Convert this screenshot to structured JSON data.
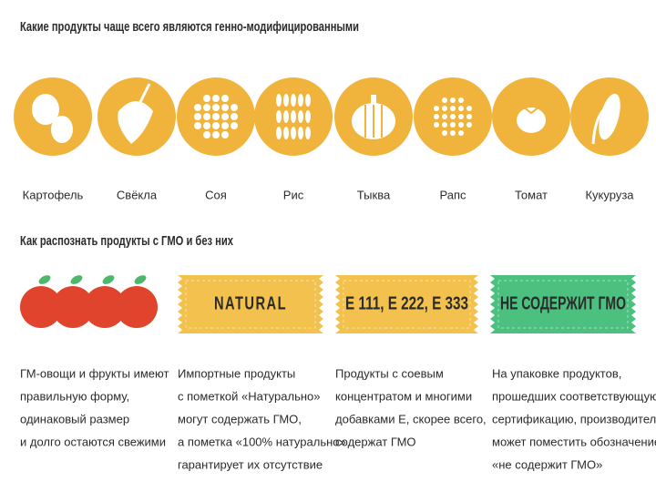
{
  "header": {
    "title": "Какие продукты чаще всего являются генно-модифицированными"
  },
  "products": [
    "Картофель",
    "Свёкла",
    "Соя",
    "Рис",
    "Тыква",
    "Рапс",
    "Томат",
    "Кукуруза"
  ],
  "section": {
    "title": "Как распознать продукты с ГМО и без них"
  },
  "cards": [
    {
      "label": null,
      "lines": [
        "ГМ-овощи и фрукты имеют",
        "правильную форму,",
        "одинаковый размер",
        "и долго остаются свежими"
      ]
    },
    {
      "label": "NATURAL",
      "lines": [
        "Импортные продукты",
        "с пометкой «Натурально»",
        "могут содержать ГМО,",
        "а пометка «100% натурально»",
        "гарантирует их отсутствие"
      ]
    },
    {
      "label": "E 111, E 222, E 333",
      "lines": [
        "Продукты с соевым",
        "концентратом и многими",
        "добавками Е, скорее всего,",
        "содержат ГМО"
      ]
    },
    {
      "label": "НЕ СОДЕРЖИТ ГМО",
      "lines": [
        "На упаковке продуктов,",
        "прошедших соответствующую",
        "сертификацию, производитель",
        "может поместить обозначение",
        "«не содержит ГМО»"
      ]
    }
  ]
}
